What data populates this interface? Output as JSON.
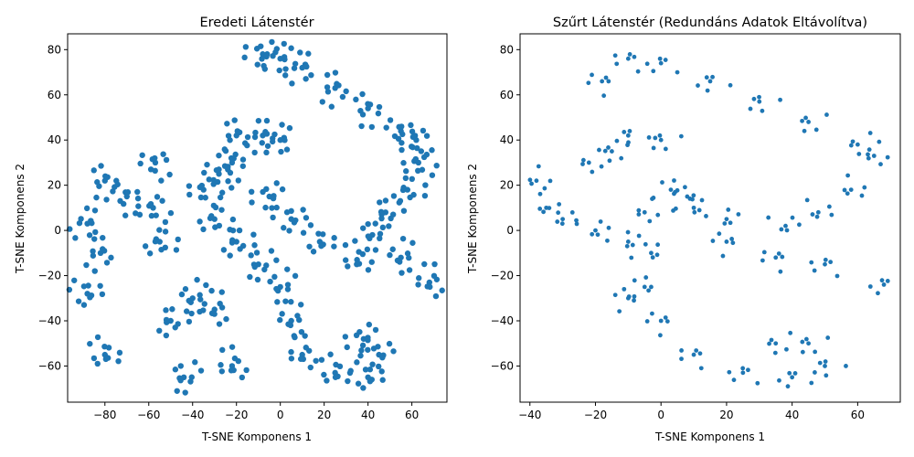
{
  "chart_data": [
    {
      "type": "scatter",
      "title": "Eredeti Látenstér",
      "xlabel": "T-SNE Komponens 1",
      "ylabel": "T-SNE Komponens 2",
      "xlim": [
        -97,
        76
      ],
      "ylim": [
        -76,
        87
      ],
      "xticks": [
        -80,
        -60,
        -40,
        -20,
        0,
        20,
        40,
        60
      ],
      "yticks": [
        -60,
        -40,
        -20,
        0,
        20,
        40,
        60,
        80
      ],
      "tick_labels_x": [
        "−80",
        "−60",
        "−40",
        "−20",
        "0",
        "20",
        "40",
        "60"
      ],
      "tick_labels_y": [
        "−60",
        "−40",
        "−20",
        "0",
        "20",
        "40",
        "60",
        "80"
      ],
      "color": "#1f77b4",
      "grid": false,
      "density": "dense",
      "approx_shape_points": [
        [
          -8,
          78
        ],
        [
          0,
          76
        ],
        [
          10,
          72
        ],
        [
          25,
          63
        ],
        [
          40,
          54
        ],
        [
          55,
          44
        ],
        [
          62,
          40
        ],
        [
          63,
          30
        ],
        [
          58,
          18
        ],
        [
          48,
          8
        ],
        [
          42,
          -2
        ],
        [
          55,
          -12
        ],
        [
          68,
          -23
        ],
        [
          35,
          -13
        ],
        [
          18,
          -5
        ],
        [
          5,
          5
        ],
        [
          -5,
          15
        ],
        [
          0,
          40
        ],
        [
          -8,
          42
        ],
        [
          -20,
          42
        ],
        [
          -22,
          30
        ],
        [
          -28,
          25
        ],
        [
          -35,
          18
        ],
        [
          -30,
          5
        ],
        [
          -20,
          -5
        ],
        [
          -10,
          -15
        ],
        [
          0,
          -25
        ],
        [
          5,
          -40
        ],
        [
          10,
          -55
        ],
        [
          25,
          -63
        ],
        [
          40,
          -65
        ],
        [
          45,
          -55
        ],
        [
          38,
          -48
        ],
        [
          -88,
          3
        ],
        [
          -82,
          -10
        ],
        [
          -80,
          22
        ],
        [
          -70,
          15
        ],
        [
          -57,
          30
        ],
        [
          -58,
          10
        ],
        [
          -55,
          -5
        ],
        [
          -50,
          -40
        ],
        [
          -44,
          -65
        ],
        [
          -40,
          -30
        ],
        [
          -30,
          -35
        ],
        [
          -22,
          -60
        ],
        [
          -80,
          -55
        ],
        [
          -88,
          -28
        ]
      ]
    },
    {
      "type": "scatter",
      "title": "Szűrt Látenstér (Redundáns Adatok Eltávolítva)",
      "xlabel": "T-SNE Komponens 1",
      "ylabel": "T-SNE Komponens 2",
      "xlim": [
        -43,
        73
      ],
      "ylim": [
        -76,
        87
      ],
      "xticks": [
        -40,
        -20,
        0,
        20,
        40,
        60
      ],
      "yticks": [
        -60,
        -40,
        -20,
        0,
        20,
        40,
        60,
        80
      ],
      "tick_labels_x": [
        "−40",
        "−20",
        "0",
        "20",
        "40",
        "60"
      ],
      "tick_labels_y": [
        "−60",
        "−40",
        "−20",
        "0",
        "20",
        "40",
        "60",
        "80"
      ],
      "color": "#1f77b4",
      "grid": false,
      "density": "sparse",
      "approx_shape_points": [
        [
          -18,
          66
        ],
        [
          -10,
          76
        ],
        [
          0,
          74
        ],
        [
          15,
          66
        ],
        [
          30,
          57
        ],
        [
          45,
          48
        ],
        [
          60,
          38
        ],
        [
          65,
          33
        ],
        [
          58,
          18
        ],
        [
          48,
          8
        ],
        [
          38,
          2
        ],
        [
          20,
          5
        ],
        [
          10,
          10
        ],
        [
          3,
          18
        ],
        [
          8,
          15
        ],
        [
          20,
          -5
        ],
        [
          35,
          -12
        ],
        [
          50,
          -15
        ],
        [
          68,
          -24
        ],
        [
          -10,
          42
        ],
        [
          0,
          40
        ],
        [
          -15,
          35
        ],
        [
          -22,
          30
        ],
        [
          -38,
          22
        ],
        [
          -35,
          10
        ],
        [
          -30,
          5
        ],
        [
          -20,
          0
        ],
        [
          -10,
          -5
        ],
        [
          -3,
          -10
        ],
        [
          -5,
          -25
        ],
        [
          -10,
          -30
        ],
        [
          0,
          -40
        ],
        [
          10,
          -55
        ],
        [
          25,
          -63
        ],
        [
          40,
          -65
        ],
        [
          50,
          -60
        ],
        [
          45,
          -50
        ],
        [
          35,
          -50
        ],
        [
          -5,
          8
        ]
      ]
    }
  ]
}
